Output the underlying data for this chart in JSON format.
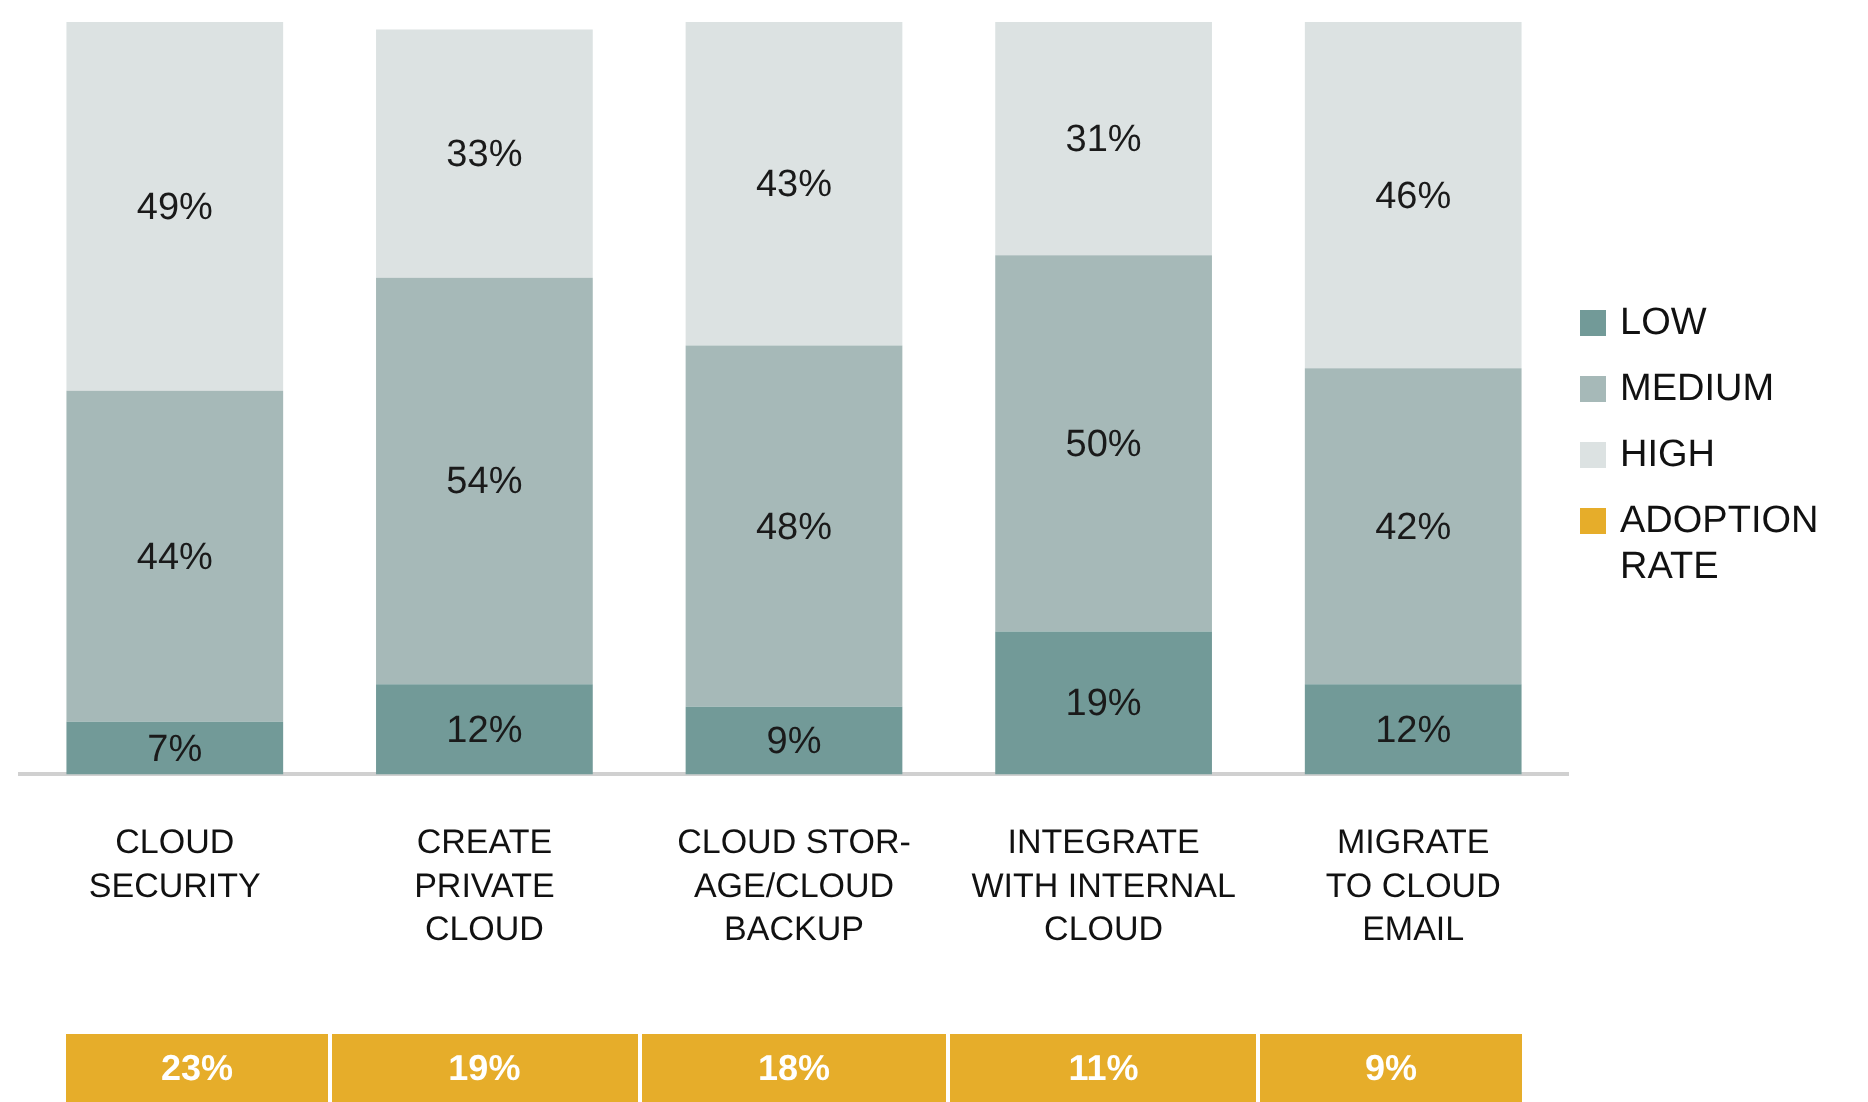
{
  "chart_data": [
    {
      "type": "bar",
      "stacked": true,
      "legend": "right",
      "tick_labels": "x",
      "categories": [
        "CLOUD\nSECURITY",
        "CREATE\nPRIVATE\nCLOUD",
        "CLOUD STOR-\nAGE/CLOUD\nBACKUP",
        "INTEGRATE\nWITH INTERNAL\nCLOUD",
        "MIGRATE\nTO CLOUD\nEMAIL"
      ],
      "series": [
        {
          "name": "LOW",
          "color": "#729a98",
          "values": [
            7,
            12,
            9,
            19,
            12
          ],
          "value_labels": [
            "7%",
            "12%",
            "9%",
            "19%",
            "12%"
          ]
        },
        {
          "name": "MEDIUM",
          "color": "#a6b9b8",
          "values": [
            44,
            54,
            48,
            50,
            42
          ],
          "value_labels": [
            "44%",
            "54%",
            "48%",
            "50%",
            "42%"
          ]
        },
        {
          "name": "HIGH",
          "color": "#dce2e2",
          "values": [
            49,
            33,
            43,
            31,
            46
          ],
          "value_labels": [
            "49%",
            "33%",
            "43%",
            "31%",
            "46%"
          ]
        }
      ]
    },
    {
      "type": "other",
      "legend": "right",
      "categories": [
        null,
        null,
        null,
        null,
        null
      ],
      "series": [
        {
          "name": "ADOPTION RATE",
          "color": "#e6ad2a",
          "values": [
            23,
            19,
            18,
            11,
            9
          ],
          "value_labels": [
            "23%",
            "19%",
            "18%",
            "11%",
            "9%"
          ]
        }
      ]
    }
  ]
}
